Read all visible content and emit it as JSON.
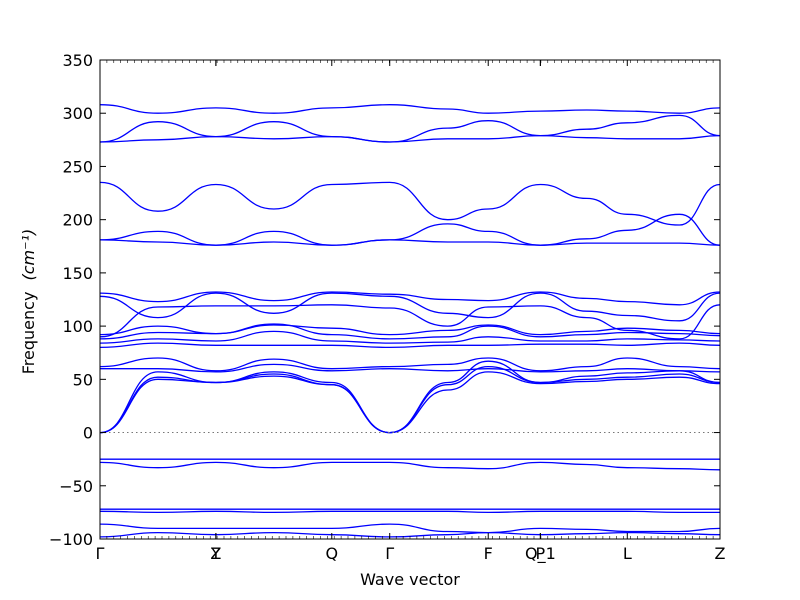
{
  "chart_data": {
    "type": "line",
    "xlabel": "Wave vector",
    "ylabel": "Frequency",
    "ylabel_unit": "(cm⁻¹)",
    "ylim": [
      -100,
      350
    ],
    "yticks": [
      -100,
      -50,
      0,
      50,
      100,
      150,
      200,
      250,
      300,
      350
    ],
    "ytick_labels": [
      "−100",
      "−50",
      "0",
      "50",
      "100",
      "150",
      "200",
      "250",
      "300",
      "350"
    ],
    "grid": false,
    "line_color": "#0000ff",
    "zero_line_color": "#777777",
    "kpath": [
      {
        "label": "Γ",
        "x": 0.0
      },
      {
        "label": "Y",
        "x": 1.0
      },
      {
        "label": "Z",
        "x": 1.0
      },
      {
        "label": "Q",
        "x": 2.0
      },
      {
        "label": "Γ",
        "x": 2.5
      },
      {
        "label": "F",
        "x": 3.35
      },
      {
        "label": "P",
        "x": 3.8
      },
      {
        "label": "Q_1",
        "x": 3.8
      },
      {
        "label": "L",
        "x": 4.55
      },
      {
        "label": "Z",
        "x": 5.35
      }
    ],
    "x_segments": [
      0.0,
      1.0,
      2.5,
      3.8,
      5.35
    ],
    "bands_x": [
      0.0,
      0.5,
      1.0,
      1.5,
      2.0,
      2.5,
      3.0,
      3.35,
      3.8,
      4.2,
      4.55,
      5.0,
      5.35
    ],
    "bands": [
      {
        "values": [
          308,
          300,
          305,
          300,
          305,
          308,
          304,
          300,
          302,
          303,
          302,
          300,
          305
        ]
      },
      {
        "values": [
          273,
          292,
          278,
          292,
          278,
          273,
          286,
          293,
          279,
          285,
          291,
          298,
          279
        ]
      },
      {
        "values": [
          273,
          275,
          278,
          276,
          278,
          273,
          276,
          276,
          279,
          277,
          276,
          276,
          279
        ]
      },
      {
        "values": [
          235,
          208,
          233,
          210,
          233,
          235,
          200,
          210,
          233,
          220,
          205,
          195,
          233
        ]
      },
      {
        "values": [
          181,
          189,
          176,
          189,
          176,
          181,
          196,
          189,
          176,
          182,
          190,
          205,
          176
        ]
      },
      {
        "values": [
          181,
          179,
          176,
          179,
          176,
          181,
          179,
          179,
          176,
          178,
          178,
          178,
          176
        ]
      },
      {
        "values": [
          131,
          123,
          132,
          124,
          132,
          130,
          125,
          124,
          132,
          126,
          123,
          120,
          132
        ]
      },
      {
        "values": [
          128,
          108,
          131,
          112,
          131,
          128,
          112,
          108,
          131,
          114,
          110,
          105,
          131
        ]
      },
      {
        "values": [
          90,
          118,
          119,
          119,
          120,
          117,
          100,
          118,
          119,
          108,
          96,
          88,
          120
        ]
      },
      {
        "values": [
          92,
          100,
          93,
          101,
          98,
          92,
          96,
          101,
          92,
          95,
          98,
          96,
          93
        ]
      },
      {
        "values": [
          88,
          94,
          93,
          102,
          92,
          88,
          90,
          100,
          90,
          92,
          94,
          93,
          91
        ]
      },
      {
        "values": [
          84,
          88,
          86,
          95,
          86,
          84,
          85,
          90,
          86,
          86,
          88,
          87,
          86
        ]
      },
      {
        "values": [
          80,
          84,
          82,
          82,
          82,
          80,
          82,
          82,
          83,
          83,
          82,
          84,
          82
        ]
      },
      {
        "values": [
          62,
          70,
          58,
          69,
          60,
          62,
          64,
          70,
          58,
          62,
          70,
          62,
          60
        ]
      },
      {
        "values": [
          60,
          60,
          57,
          64,
          58,
          60,
          58,
          60,
          57,
          58,
          60,
          58,
          57
        ]
      },
      {
        "values": [
          0,
          57,
          47,
          57,
          47,
          0,
          47,
          67,
          47,
          53,
          56,
          58,
          47
        ]
      },
      {
        "values": [
          0,
          52,
          47,
          55,
          45,
          0,
          45,
          62,
          47,
          50,
          52,
          55,
          47
        ]
      },
      {
        "values": [
          0,
          50,
          47,
          53,
          45,
          0,
          40,
          57,
          46,
          48,
          50,
          52,
          46
        ]
      },
      {
        "values": [
          -25,
          -25,
          -25,
          -25,
          -25,
          -25,
          -25,
          -25,
          -25,
          -25,
          -25,
          -25,
          -25
        ]
      },
      {
        "values": [
          -28,
          -33,
          -28,
          -33,
          -28,
          -28,
          -33,
          -34,
          -28,
          -30,
          -33,
          -34,
          -35
        ]
      },
      {
        "values": [
          -72,
          -72,
          -72,
          -72,
          -72,
          -72,
          -72,
          -72,
          -72,
          -72,
          -72,
          -72,
          -72
        ]
      },
      {
        "values": [
          -74,
          -75,
          -74,
          -75,
          -74,
          -74,
          -74,
          -75,
          -74,
          -74,
          -74,
          -75,
          -75
        ]
      },
      {
        "values": [
          -86,
          -90,
          -90,
          -90,
          -90,
          -86,
          -93,
          -94,
          -90,
          -91,
          -93,
          -93,
          -90
        ]
      },
      {
        "values": [
          -98,
          -94,
          -96,
          -94,
          -96,
          -98,
          -96,
          -94,
          -96,
          -95,
          -94,
          -95,
          -96
        ]
      }
    ]
  }
}
